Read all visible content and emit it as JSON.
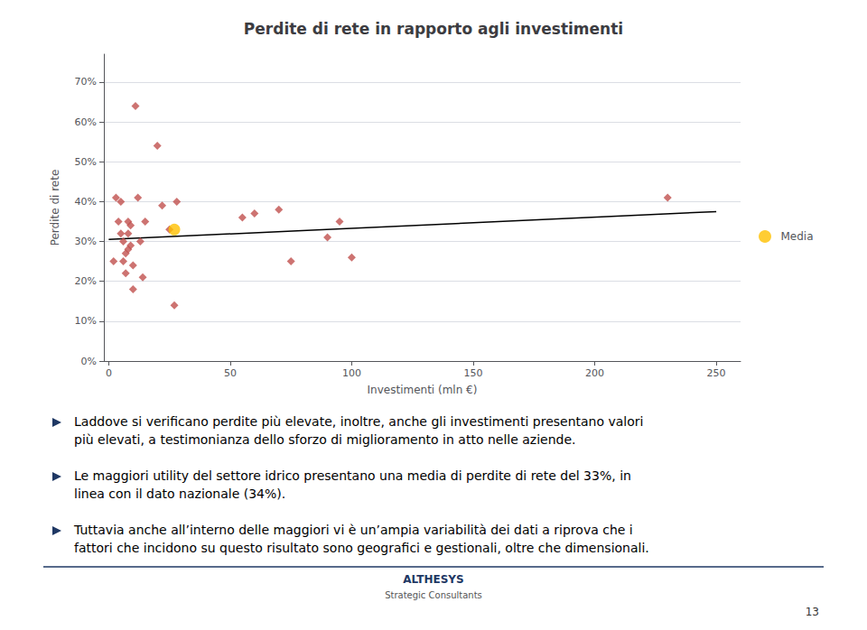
{
  "chart_data": {
    "type": "scatter",
    "title": "Perdite di rete in rapporto agli investimenti",
    "xlabel": "Investimenti (mln €)",
    "ylabel": "Perdite di rete",
    "series": [
      {
        "type": "scatter",
        "color": "#C0504D",
        "marker": "diamond",
        "x": [
          2,
          3,
          4,
          5,
          5,
          6,
          6,
          7,
          7,
          8,
          8,
          8,
          9,
          9,
          10,
          10,
          11,
          12,
          13,
          14,
          15,
          20,
          22,
          25,
          27,
          28,
          55,
          60,
          70,
          75,
          90,
          95,
          100,
          230
        ],
        "values": [
          0.25,
          0.41,
          0.35,
          0.32,
          0.4,
          0.3,
          0.25,
          0.27,
          0.22,
          0.35,
          0.32,
          0.28,
          0.29,
          0.34,
          0.18,
          0.24,
          0.64,
          0.41,
          0.3,
          0.21,
          0.35,
          0.54,
          0.39,
          0.33,
          0.14,
          0.4,
          0.36,
          0.37,
          0.38,
          0.25,
          0.31,
          0.35,
          0.26,
          0.41
        ]
      },
      {
        "name": "Media",
        "type": "scatter",
        "color": "#FFC000",
        "marker": "circle",
        "x": [
          27
        ],
        "values": [
          0.33
        ]
      },
      {
        "type": "line",
        "color": "#000000",
        "line_style": "solid",
        "x": [
          0,
          250
        ],
        "values": [
          0.305,
          0.375
        ]
      }
    ],
    "xlim": [
      -2,
      260
    ],
    "ylim": [
      0.0,
      0.77
    ],
    "xticks": [
      0,
      50,
      100,
      150,
      200,
      250
    ],
    "yticks": [
      {
        "value": 0.0,
        "label": "0%"
      },
      {
        "value": 0.1,
        "label": "10%"
      },
      {
        "value": 0.2,
        "label": "20%"
      },
      {
        "value": 0.3,
        "label": "30%"
      },
      {
        "value": 0.4,
        "label": "40%"
      },
      {
        "value": 0.5,
        "label": "50%"
      },
      {
        "value": 0.6,
        "label": "60%"
      },
      {
        "value": 0.7,
        "label": "70%"
      }
    ],
    "grid": true,
    "legend": "right",
    "annotations": [
      "Laddove si verificano perdite più elevate, inoltre, anche gli investimenti presentano valori",
      "più elevati, a testimonianza dello sforzo di miglioramento in atto nelle aziende.",
      "Le maggiori utility del settore idrico presentano una media di perdite di rete del 33%, in",
      "linea con il dato nazionale (34%).",
      "Tuttavia anche all’interno delle maggiori vi è un’ampia variabilità dei dati a riprova che i",
      "fattori che incidono su questo risultato sono geografici e gestionali, oltre che dimensionali.",
      "ALTHESYS",
      "Strategic Consultants",
      "13"
    ]
  }
}
